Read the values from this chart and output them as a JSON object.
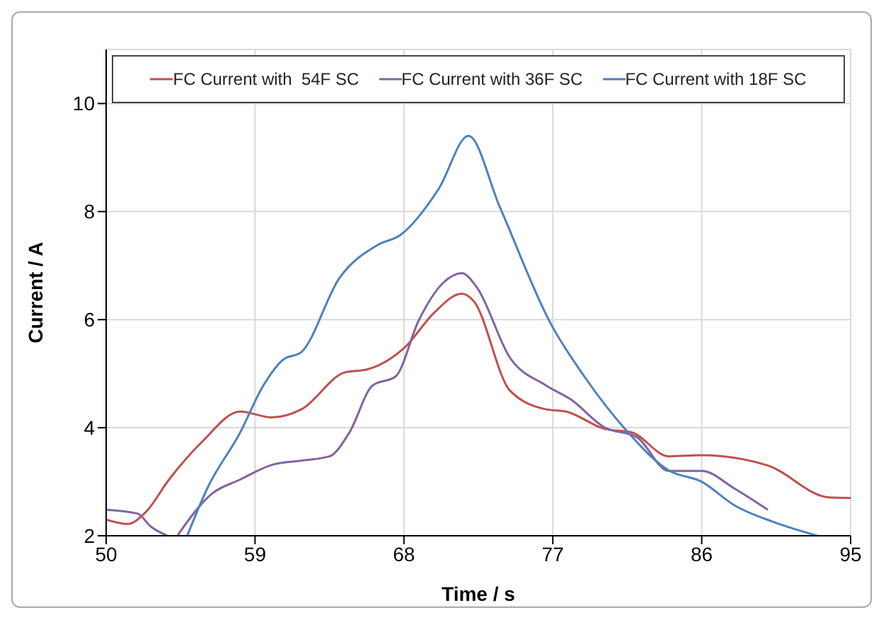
{
  "chart_data": {
    "type": "line",
    "xlabel": "Time / s",
    "ylabel": "Current / A",
    "xlim": [
      50,
      95
    ],
    "xticks": [
      50,
      59,
      68,
      77,
      86,
      95
    ],
    "ylim": [
      2,
      11
    ],
    "yticks": [
      2,
      4,
      6,
      8,
      10
    ],
    "grid": true,
    "legend": "top",
    "marker": "none",
    "line_style": "solid",
    "series": [
      {
        "name": "FC Current with  54F SC",
        "color": "#c0504d",
        "x": [
          50,
          51.3,
          52.4,
          53.8,
          55.8,
          58.1,
          60.0,
          61.8,
          64.4,
          65.8,
          68.1,
          69.8,
          71.5,
          72.2,
          74.4,
          76.6,
          77.8,
          80.1,
          81.8,
          84.0,
          86.0,
          90.0,
          93.7,
          95
        ],
        "values": [
          2.3,
          2.22,
          2.44,
          3.04,
          3.74,
          4.3,
          4.19,
          4.34,
          5.02,
          5.08,
          5.5,
          6.12,
          6.48,
          6.35,
          4.69,
          4.34,
          4.3,
          3.98,
          3.91,
          3.47,
          3.49,
          3.3,
          2.71,
          2.7
        ]
      },
      {
        "name": "FC Current with 36F SC",
        "color": "#8064a2",
        "x": [
          50,
          51.9,
          52.7,
          53.7,
          54.0,
          54.3,
          56.4,
          58.1,
          60.1,
          61.8,
          63.5,
          64.7,
          66.1,
          67.5,
          68.9,
          70.4,
          71.5,
          72.4,
          74.4,
          76.6,
          78.1,
          80.1,
          82.1,
          84.0,
          86.0,
          88.0,
          90.0
        ],
        "values": [
          2.48,
          2.41,
          2.17,
          2.0,
          null,
          2.0,
          2.78,
          3.04,
          3.32,
          3.39,
          3.47,
          3.91,
          4.78,
          4.95,
          5.99,
          6.69,
          6.86,
          6.6,
          5.3,
          4.78,
          4.52,
          4.01,
          3.82,
          3.2,
          3.2,
          2.87,
          2.48
        ]
      },
      {
        "name": "FC Current with 18F SC",
        "color": "#4f81bd",
        "x": [
          54.9,
          56.1,
          58.1,
          59.5,
          60.7,
          61.8,
          64.1,
          66.4,
          67.8,
          70.1,
          71.9,
          73.8,
          76.9,
          78.9,
          81.5,
          84.0,
          86.0,
          88.0,
          90.3,
          93.0
        ],
        "values": [
          2.0,
          2.87,
          3.91,
          4.78,
          5.26,
          5.4,
          6.77,
          7.38,
          7.57,
          8.42,
          9.4,
          8.08,
          5.91,
          4.95,
          3.93,
          3.21,
          3.0,
          2.56,
          2.26,
          2.0
        ]
      }
    ]
  }
}
